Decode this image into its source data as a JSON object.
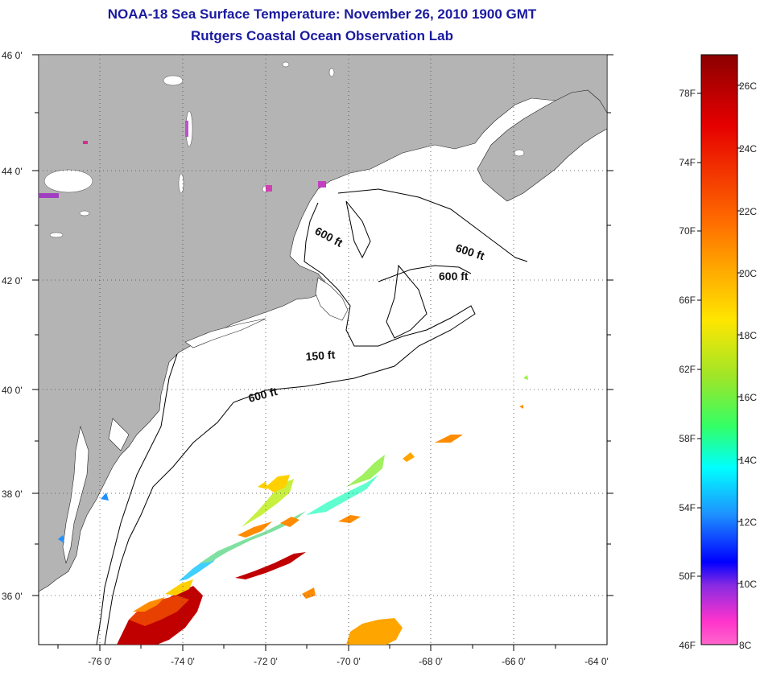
{
  "title_line1": "NOAA-18 Sea Surface Temperature:  November 26, 2010 1900 GMT",
  "title_line2": "Rutgers Coastal Ocean Observation Lab",
  "map": {
    "lat_labels": [
      "46 0'",
      "44 0'",
      "42 0'",
      "40 0'",
      "38 0'",
      "36 0'"
    ],
    "lon_labels": [
      "-76 0'",
      "-74 0'",
      "-72 0'",
      "-70 0'",
      "-68 0'",
      "-66 0'",
      "-64 0'"
    ],
    "lat_range": [
      35.0,
      46.0
    ],
    "lon_range": [
      -77.0,
      -63.2
    ],
    "depth_contours": [
      "600 ft",
      "600 ft",
      "600 ft",
      "150 ft",
      "600 ft"
    ],
    "colors": {
      "land": "#b4b4b4",
      "ocean": "#ffffff",
      "grid": "#444444",
      "title": "#1a1aa0"
    }
  },
  "colorbar": {
    "fahrenheit_labels": [
      "78F",
      "74F",
      "70F",
      "66F",
      "62F",
      "58F",
      "54F",
      "50F",
      "46F"
    ],
    "celsius_labels": [
      "26C",
      "24C",
      "22C",
      "20C",
      "18C",
      "16C",
      "14C",
      "12C",
      "10C",
      "8C"
    ],
    "stops": [
      "#8b0000",
      "#e60000",
      "#ff6a00",
      "#ffa500",
      "#ffe600",
      "#9ae62a",
      "#33ff66",
      "#00ffff",
      "#1e90ff",
      "#0000ff",
      "#8a2be2",
      "#ff33cc",
      "#ff66cc"
    ]
  }
}
